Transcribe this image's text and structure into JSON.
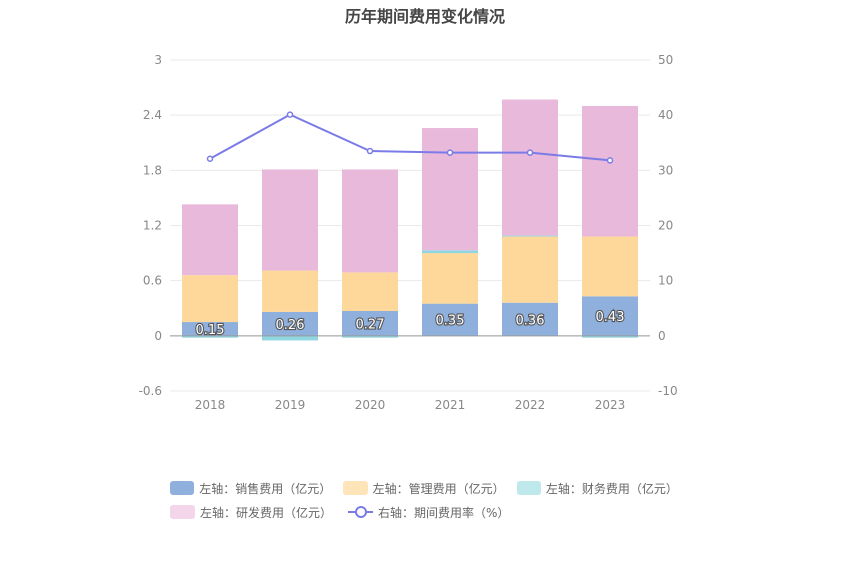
{
  "chart_data": {
    "type": "bar",
    "title": "历年期间费用变化情况",
    "categories": [
      "2018",
      "2019",
      "2020",
      "2021",
      "2022",
      "2023"
    ],
    "stacked": true,
    "left_axis": {
      "ylim": [
        -0.6,
        3
      ],
      "ticks": [
        "-0.6",
        "0",
        "0.6",
        "1.2",
        "1.8",
        "2.4",
        "3"
      ]
    },
    "right_axis": {
      "ylim": [
        -10,
        50
      ],
      "ticks": [
        "-10",
        "0",
        "10",
        "20",
        "30",
        "40",
        "50"
      ]
    },
    "grid": true,
    "series": [
      {
        "name": "左轴：销售费用（亿元）",
        "axis": "left",
        "color": "#8fb0dc",
        "values": [
          0.15,
          0.26,
          0.27,
          0.35,
          0.36,
          0.43
        ],
        "labels": [
          "0.15",
          "0.26",
          "0.27",
          "0.35",
          "0.36",
          "0.43"
        ]
      },
      {
        "name": "左轴：管理费用（亿元）",
        "axis": "left",
        "color": "#fdd89a",
        "values": [
          0.51,
          0.45,
          0.42,
          0.55,
          0.72,
          0.65
        ]
      },
      {
        "name": "左轴：财务费用（亿元）",
        "axis": "left",
        "color": "#8fd6e0",
        "values": [
          -0.02,
          -0.05,
          -0.02,
          0.03,
          0.01,
          -0.02
        ]
      },
      {
        "name": "左轴：研发费用（亿元）",
        "axis": "left",
        "color": "#e8b9da",
        "values": [
          0.77,
          1.1,
          1.12,
          1.33,
          1.48,
          1.42
        ]
      },
      {
        "name": "右轴：期间费用率（%）",
        "axis": "right",
        "type": "line",
        "color": "#7b7be8",
        "values": [
          32.1,
          40.1,
          33.5,
          33.2,
          33.2,
          31.8
        ]
      }
    ]
  }
}
